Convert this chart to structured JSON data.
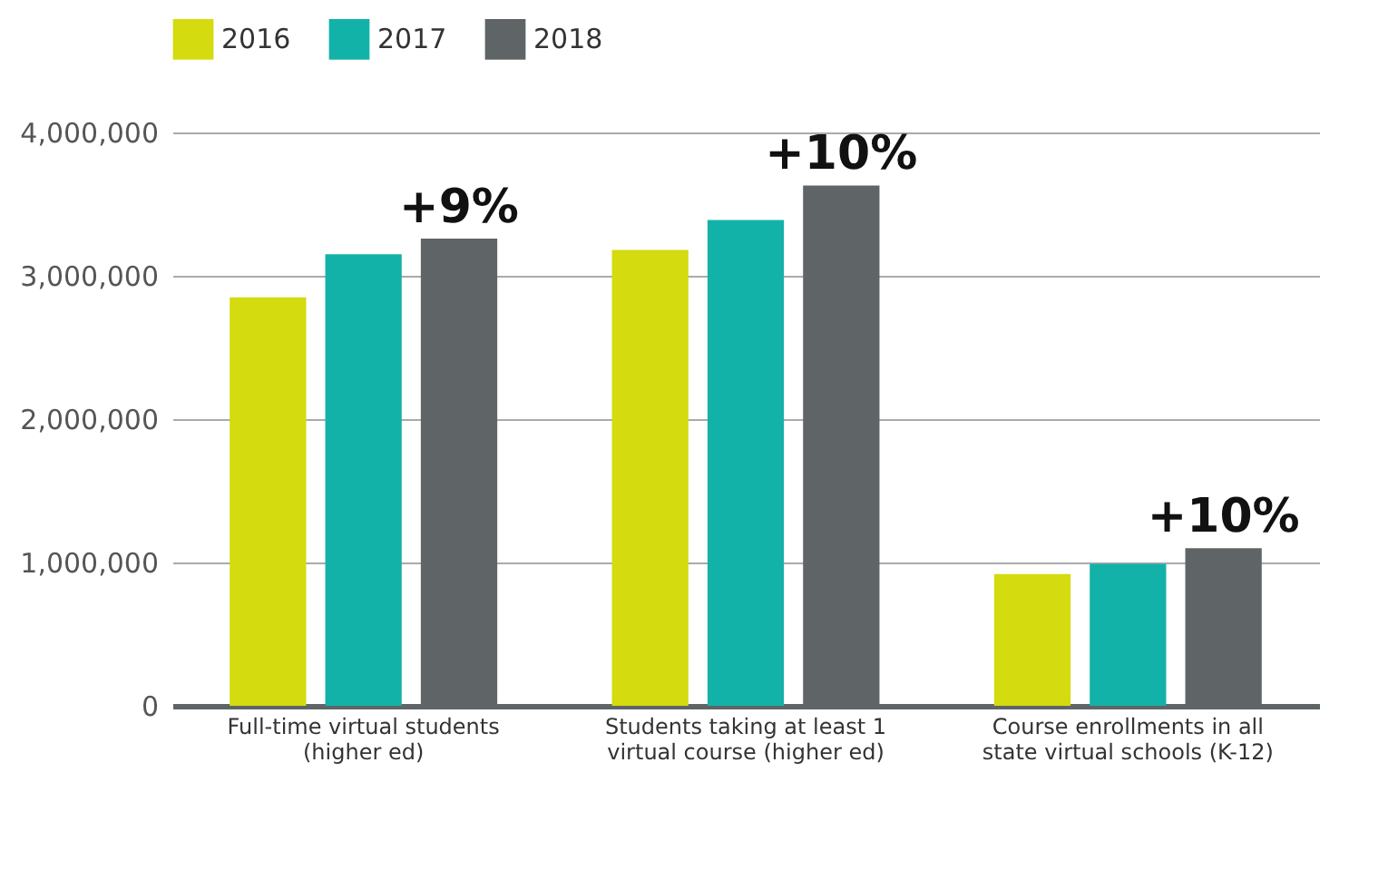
{
  "chart_data": {
    "type": "bar",
    "categories": [
      "Full-time virtual students\n(higher ed)",
      "Students taking at least 1\nvirtual course (higher ed)",
      "Course enrollments in all\nstate virtual schools (K-12)"
    ],
    "series": [
      {
        "name": "2016",
        "color": "#d4db0f",
        "values": [
          2850000,
          3180000,
          920000
        ]
      },
      {
        "name": "2017",
        "color": "#13b2a8",
        "values": [
          3150000,
          3390000,
          990000
        ]
      },
      {
        "name": "2018",
        "color": "#5f6466",
        "values": [
          3260000,
          3630000,
          1100000
        ]
      }
    ],
    "ylim": [
      0,
      4000000
    ],
    "yticks": [
      0,
      {
        "value": 1000000,
        "label": "1,000,000"
      },
      {
        "value": 2000000,
        "label": "2,000,000"
      },
      {
        "value": 3000000,
        "label": "3,000,000"
      },
      {
        "value": 4000000,
        "label": "4,000,000"
      }
    ],
    "grid": "y",
    "legend": "top",
    "annotations": [
      "+9%",
      "+10%",
      "+10%"
    ]
  }
}
